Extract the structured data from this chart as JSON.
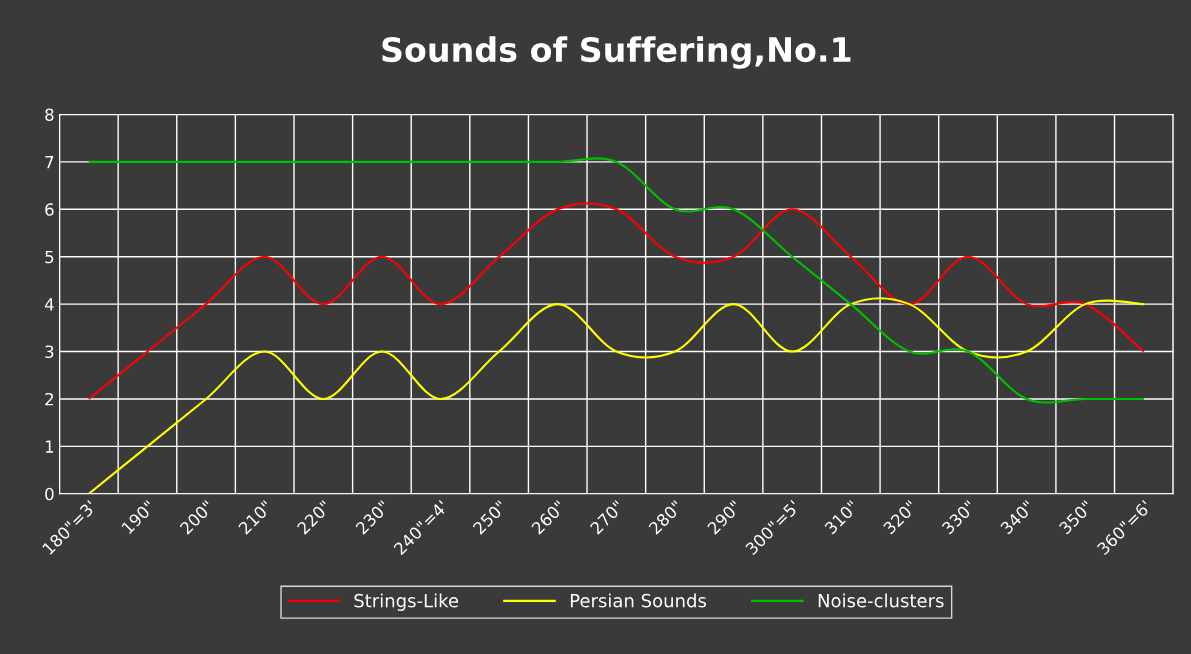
{
  "chart_data": {
    "type": "line",
    "title": "Sounds of Suffering,No.1",
    "categories": [
      "180\"=3'",
      "190\"",
      "200\"",
      "210\"",
      "220\"",
      "230\"",
      "240\"=4'",
      "250\"",
      "260\"",
      "270\"",
      "280\"",
      "290\"",
      "300\"=5'",
      "310\"",
      "320\"",
      "330\"",
      "340\"",
      "350\"",
      "360\"=6'"
    ],
    "series": [
      {
        "name": "Strings-Like",
        "color": "#ff0000",
        "values": [
          2,
          3,
          4,
          5,
          4,
          5,
          4,
          5,
          6,
          6,
          5,
          5,
          6,
          5,
          4,
          5,
          4,
          4,
          3
        ]
      },
      {
        "name": "Persian Sounds",
        "color": "#ffff00",
        "values": [
          0,
          1,
          2,
          3,
          2,
          3,
          2,
          3,
          4,
          3,
          3,
          4,
          3,
          4,
          4,
          3,
          3,
          4,
          4
        ]
      },
      {
        "name": "Noise-clusters",
        "color": "#00c000",
        "values": [
          7,
          7,
          7,
          7,
          7,
          7,
          7,
          7,
          7,
          7,
          6,
          6,
          5,
          4,
          3,
          3,
          2,
          2,
          2
        ]
      }
    ],
    "ylim": [
      0,
      8
    ],
    "yticks": [
      0,
      1,
      2,
      3,
      4,
      5,
      6,
      7,
      8
    ],
    "grid": true,
    "legend": "bottom",
    "marker": "none",
    "line_style": "solid"
  }
}
